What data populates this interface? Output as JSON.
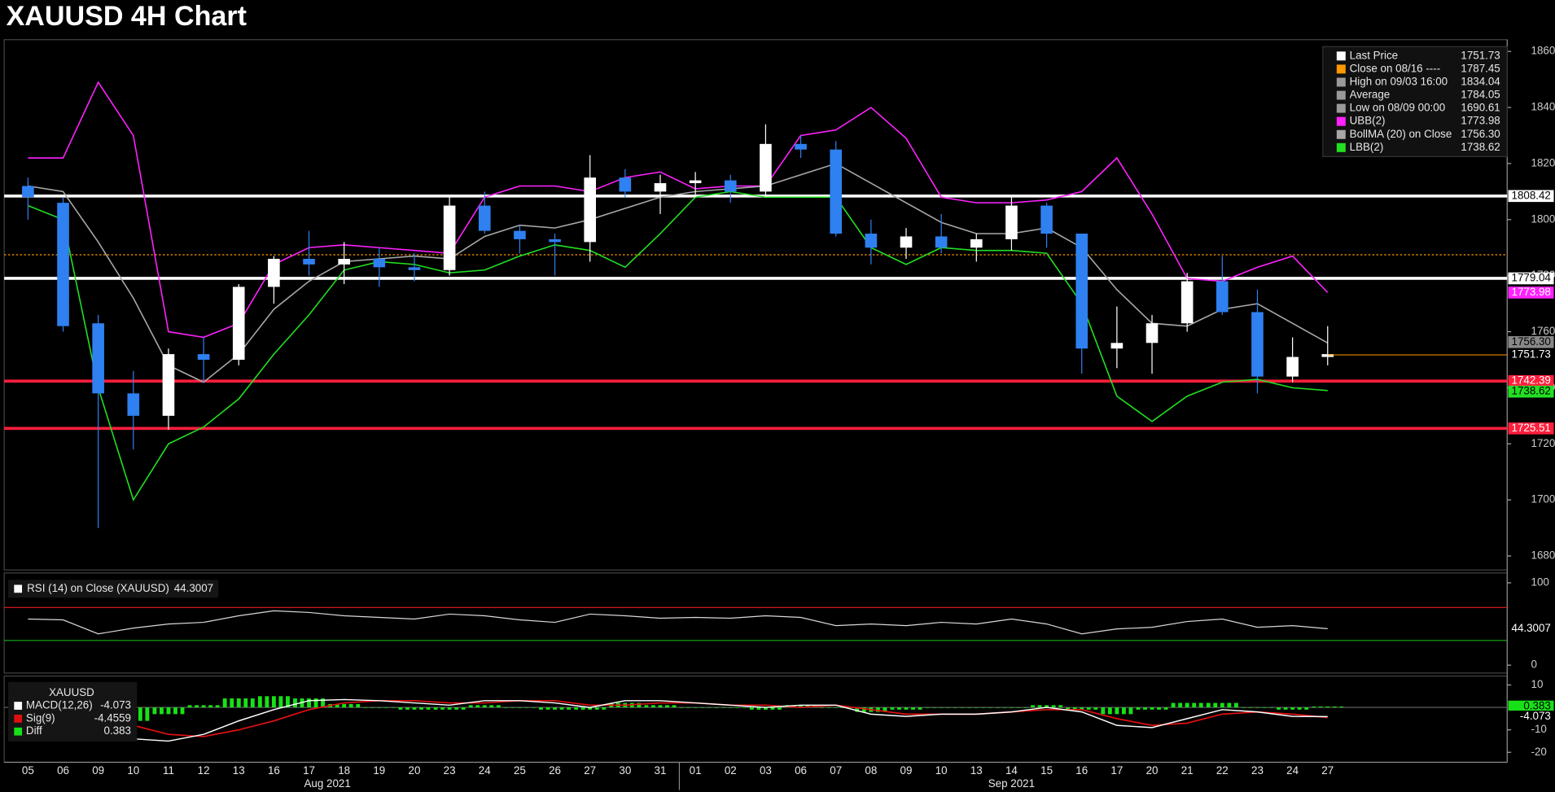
{
  "chart_data": [
    {
      "type": "candlestick",
      "title": "XAUUSD 4H Chart",
      "x": [
        "05",
        "06",
        "09",
        "10",
        "11",
        "12",
        "13",
        "16",
        "17",
        "18",
        "19",
        "20",
        "23",
        "24",
        "25",
        "26",
        "27",
        "30",
        "31",
        "01",
        "02",
        "03",
        "06",
        "07",
        "08",
        "09",
        "10",
        "13",
        "14",
        "15",
        "16",
        "17",
        "20",
        "21",
        "22",
        "23",
        "24",
        "27"
      ],
      "x_groups": [
        "Aug 2021",
        "Sep 2021"
      ],
      "open": [
        1812,
        1806,
        1763,
        1738,
        1730,
        1752,
        1750,
        1776,
        1786,
        1784,
        1786,
        1783,
        1782,
        1805,
        1796,
        1793,
        1792,
        1815,
        1810,
        1813,
        1814,
        1810,
        1827,
        1825,
        1795,
        1790,
        1794,
        1790,
        1793,
        1805,
        1795,
        1754,
        1756,
        1763,
        1778,
        1767,
        1744,
        1751
      ],
      "high": [
        1815,
        1808,
        1766,
        1746,
        1754,
        1758,
        1777,
        1787,
        1796,
        1792,
        1790,
        1788,
        1808,
        1810,
        1798,
        1795,
        1823,
        1818,
        1816,
        1817,
        1816,
        1834,
        1830,
        1828,
        1800,
        1797,
        1802,
        1795,
        1808,
        1806,
        1795,
        1769,
        1766,
        1781,
        1787,
        1775,
        1758,
        1762
      ],
      "low": [
        1800,
        1760,
        1690,
        1718,
        1725,
        1742,
        1748,
        1770,
        1780,
        1777,
        1776,
        1778,
        1780,
        1795,
        1788,
        1780,
        1785,
        1808,
        1802,
        1808,
        1806,
        1808,
        1822,
        1794,
        1784,
        1786,
        1788,
        1785,
        1789,
        1790,
        1745,
        1747,
        1745,
        1760,
        1766,
        1738,
        1742,
        1748
      ],
      "close": [
        1808,
        1762,
        1738,
        1730,
        1752,
        1750,
        1776,
        1786,
        1784,
        1786,
        1783,
        1782,
        1805,
        1796,
        1793,
        1792,
        1815,
        1810,
        1813,
        1814,
        1810,
        1827,
        1825,
        1795,
        1790,
        1794,
        1790,
        1793,
        1805,
        1795,
        1754,
        1756,
        1763,
        1778,
        1767,
        1744,
        1751,
        1752
      ],
      "up_color": "#ffffff",
      "down_color": "#2f80f0",
      "series": [
        {
          "name": "UBB(2)",
          "color": "#ff22ff",
          "current": 1773.98,
          "values": [
            1822,
            1822,
            1849,
            1830,
            1760,
            1758,
            1763,
            1784,
            1790,
            1791,
            1790,
            1789,
            1788,
            1808,
            1812,
            1812,
            1810,
            1815,
            1817,
            1811,
            1812,
            1812,
            1830,
            1832,
            1840,
            1829,
            1808,
            1806,
            1806,
            1807,
            1810,
            1822,
            1802,
            1779,
            1778,
            1783,
            1787,
            1774
          ]
        },
        {
          "name": "BollMA (20)  on Close",
          "color": "#a8a8a8",
          "current": {
            "value": 1756.3,
            "label": "1756.30"
          },
          "values": [
            1812,
            1810,
            1792,
            1772,
            1748,
            1742,
            1752,
            1768,
            1778,
            1785,
            1786,
            1787,
            1786,
            1794,
            1798,
            1797,
            1800,
            1804,
            1808,
            1810,
            1811,
            1812,
            1816,
            1820,
            1813,
            1806,
            1799,
            1795,
            1795,
            1797,
            1790,
            1775,
            1763,
            1762,
            1768,
            1770,
            1763,
            1756
          ]
        },
        {
          "name": "LBB(2)",
          "color": "#22e022",
          "current": 1738.62,
          "values": [
            1805,
            1800,
            1740,
            1700,
            1720,
            1726,
            1736,
            1752,
            1766,
            1782,
            1785,
            1784,
            1781,
            1782,
            1787,
            1791,
            1789,
            1783,
            1795,
            1808,
            1810,
            1808,
            1808,
            1808,
            1790,
            1784,
            1790,
            1789,
            1789,
            1788,
            1770,
            1737,
            1728,
            1737,
            1742,
            1743,
            1740,
            1739
          ]
        }
      ],
      "stats": [
        {
          "name": "Last Price",
          "value": 1751.73,
          "color": "#ffffff"
        },
        {
          "name": "Close on 08/16 ----",
          "value": 1787.45,
          "color": "#ff9900"
        },
        {
          "name": "High on 09/03 16:00",
          "value": 1834.04,
          "color": "#9a9a9a"
        },
        {
          "name": "Average",
          "value": 1784.05,
          "color": "#9a9a9a"
        },
        {
          "name": "Low on 08/09 00:00",
          "value": 1690.61,
          "color": "#9a9a9a"
        }
      ],
      "levels": [
        {
          "value": 1808.42,
          "color": "#ffffff"
        },
        {
          "value": 1779.04,
          "color": "#ffffff"
        },
        {
          "value": 1742.39,
          "color": "#ff1e3c"
        },
        {
          "value": 1725.51,
          "color": "#ff1e3c"
        }
      ],
      "ylim": [
        1675,
        1863.5
      ],
      "yticks": [
        1680,
        1700,
        1720,
        1740,
        1760,
        1780,
        1800,
        1820,
        1840,
        1860
      ]
    },
    {
      "type": "line",
      "name": "RSI (14)  on Close (XAUUSD)",
      "current": 44.3007,
      "color": "#d8d8d8",
      "values": [
        56,
        55,
        38,
        45,
        50,
        52,
        60,
        66,
        64,
        60,
        58,
        56,
        62,
        60,
        55,
        52,
        62,
        60,
        57,
        58,
        57,
        60,
        58,
        48,
        50,
        48,
        52,
        50,
        56,
        50,
        38,
        44,
        46,
        53,
        56,
        46,
        48,
        44.3
      ],
      "levels": [
        {
          "value": 70,
          "color": "#d01818"
        },
        {
          "value": 30,
          "color": "#18b018"
        }
      ],
      "ylim": [
        -8.4,
        109.6
      ],
      "yticks": [
        0,
        100
      ]
    },
    {
      "type": "macd",
      "title": "XAUUSD",
      "series": [
        {
          "name": "MACD(12,26)",
          "color": "#ffffff",
          "current": -4.073,
          "values": [
            2,
            1,
            -8,
            -14,
            -15,
            -12,
            -6,
            -1,
            3,
            3.5,
            3,
            2,
            1,
            3,
            3,
            2,
            0,
            3,
            3,
            2,
            1,
            0,
            1,
            1,
            -3,
            -4,
            -3,
            -3,
            -2,
            0,
            -2,
            -8,
            -9,
            -5,
            -1,
            -2,
            -4,
            -4.1
          ]
        },
        {
          "name": "Sig(9)",
          "color": "#e01010",
          "current": -4.4559,
          "values": [
            2,
            2,
            -2,
            -8,
            -12,
            -13,
            -10,
            -6,
            -1,
            2,
            3,
            3,
            2,
            2,
            3,
            3,
            1,
            1,
            2,
            2,
            1,
            1,
            0,
            1,
            -1,
            -3,
            -3,
            -3,
            -2,
            -1,
            -1,
            -5,
            -8,
            -7,
            -3,
            -2,
            -3,
            -4.5
          ]
        },
        {
          "name": "Diff",
          "color": "#18e018",
          "current": 0.383,
          "values": [
            0,
            -1,
            -6,
            -6,
            -3,
            1,
            4,
            5,
            4,
            1.5,
            0,
            -1,
            -1,
            1,
            0,
            -1,
            -1,
            2,
            1,
            0,
            0,
            -1,
            1,
            0,
            -2,
            -1,
            0,
            0,
            0,
            1,
            -1,
            -3,
            -1,
            2,
            2,
            0,
            -1,
            0.4
          ]
        }
      ],
      "ylim": [
        -24,
        13.1
      ],
      "yticks": [
        10,
        -10,
        -20
      ]
    }
  ]
}
